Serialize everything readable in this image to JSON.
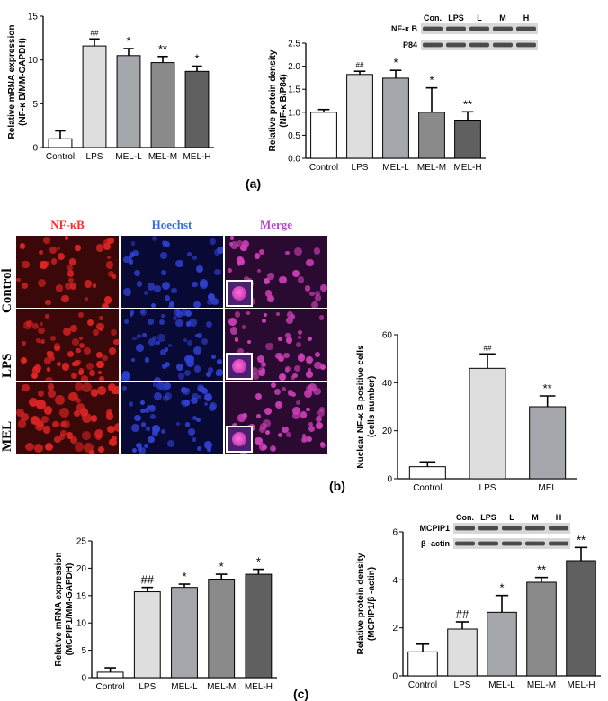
{
  "panel_labels": {
    "a": "(a)",
    "b": "(b)",
    "c": "(c)"
  },
  "chart_data": [
    {
      "id": "a_left",
      "type": "bar",
      "categories": [
        "Control",
        "LPS",
        "MEL-L",
        "MEL-M",
        "MEL-H"
      ],
      "values": [
        1.0,
        11.6,
        10.5,
        9.7,
        8.7
      ],
      "errors": [
        0.9,
        0.8,
        0.8,
        0.7,
        0.6
      ],
      "annotations": [
        "",
        "##",
        "*",
        "**",
        "*"
      ],
      "ylabel_lines": [
        "Relative mRNA expression",
        "(NF-κ B/MM-GAPDH)"
      ],
      "ylim": [
        0,
        15
      ],
      "yticks": [
        0,
        5,
        10,
        15
      ],
      "colors": [
        "#ffffff",
        "#dedede",
        "#a6a6ad",
        "#8a8a8a",
        "#606060"
      ]
    },
    {
      "id": "a_right",
      "type": "bar",
      "categories": [
        "Control",
        "LPS",
        "MEL-L",
        "MEL-M",
        "MEL-H"
      ],
      "values": [
        1.0,
        1.82,
        1.74,
        1.0,
        0.83
      ],
      "errors": [
        0.06,
        0.07,
        0.17,
        0.53,
        0.18
      ],
      "annotations": [
        "",
        "##",
        "*",
        "*",
        "**"
      ],
      "ylabel_lines": [
        "Relative protein density",
        "(NF-κ B/P84)"
      ],
      "ylim": [
        0,
        2.5
      ],
      "yticks": [
        0.0,
        0.5,
        1.0,
        1.5,
        2.0,
        2.5
      ],
      "blot_lanes": [
        "Con.",
        "LPS",
        "L",
        "M",
        "H"
      ],
      "blot_rows": [
        "NF-κ B",
        "P84"
      ],
      "colors": [
        "#ffffff",
        "#dedede",
        "#a6a6ad",
        "#8a8a8a",
        "#606060"
      ]
    },
    {
      "id": "b",
      "type": "bar",
      "categories": [
        "Control",
        "LPS",
        "MEL"
      ],
      "values": [
        5,
        46,
        30
      ],
      "errors": [
        2,
        6,
        4.5
      ],
      "annotations": [
        "",
        "##",
        "**"
      ],
      "ylabel_lines": [
        "Nuclear NF-κ B positive cells",
        "(cells number)"
      ],
      "ylim": [
        0,
        60
      ],
      "yticks": [
        0,
        20,
        40,
        60
      ],
      "colors": [
        "#ffffff",
        "#dedede",
        "#a6a6ad"
      ]
    },
    {
      "id": "c_left",
      "type": "bar",
      "categories": [
        "Control",
        "LPS",
        "MEL-L",
        "MEL-M",
        "MEL-H"
      ],
      "values": [
        1.0,
        15.7,
        16.5,
        18.0,
        18.9
      ],
      "errors": [
        0.8,
        0.8,
        0.6,
        0.9,
        0.9
      ],
      "annotations": [
        "",
        "##",
        "*",
        "*",
        "*"
      ],
      "ylabel_lines": [
        "Relative mRNA expression",
        "(MCPIP1/MM-GAPDH)"
      ],
      "ylim": [
        0,
        25
      ],
      "yticks": [
        0,
        5,
        10,
        15,
        20,
        25
      ],
      "colors": [
        "#ffffff",
        "#dedede",
        "#a6a6ad",
        "#8a8a8a",
        "#606060"
      ]
    },
    {
      "id": "c_right",
      "type": "bar",
      "categories": [
        "Control",
        "LPS",
        "MEL-L",
        "MEL-M",
        "MEL-H"
      ],
      "values": [
        1.0,
        1.95,
        2.65,
        3.9,
        4.8
      ],
      "errors": [
        0.32,
        0.3,
        0.7,
        0.2,
        0.55
      ],
      "annotations": [
        "",
        "##",
        "*",
        "**",
        "**"
      ],
      "ylabel_lines": [
        "Relative protein density",
        "(MCPIP1/β -actin)"
      ],
      "ylim": [
        0,
        6
      ],
      "yticks": [
        0,
        2,
        4,
        6
      ],
      "blot_lanes": [
        "Con.",
        "LPS",
        "L",
        "M",
        "H"
      ],
      "blot_rows": [
        "MCPIP1",
        "β -actin"
      ],
      "colors": [
        "#ffffff",
        "#dedede",
        "#a6a6ad",
        "#8a8a8a",
        "#606060"
      ]
    }
  ],
  "micrographs": {
    "channels": [
      "NF-κB",
      "Hoechst",
      "Merge"
    ],
    "channel_colors": [
      "#ff2a2a",
      "#3b6fd6",
      "#b04cc8"
    ],
    "rows": [
      "Control",
      "LPS",
      "MEL"
    ]
  }
}
